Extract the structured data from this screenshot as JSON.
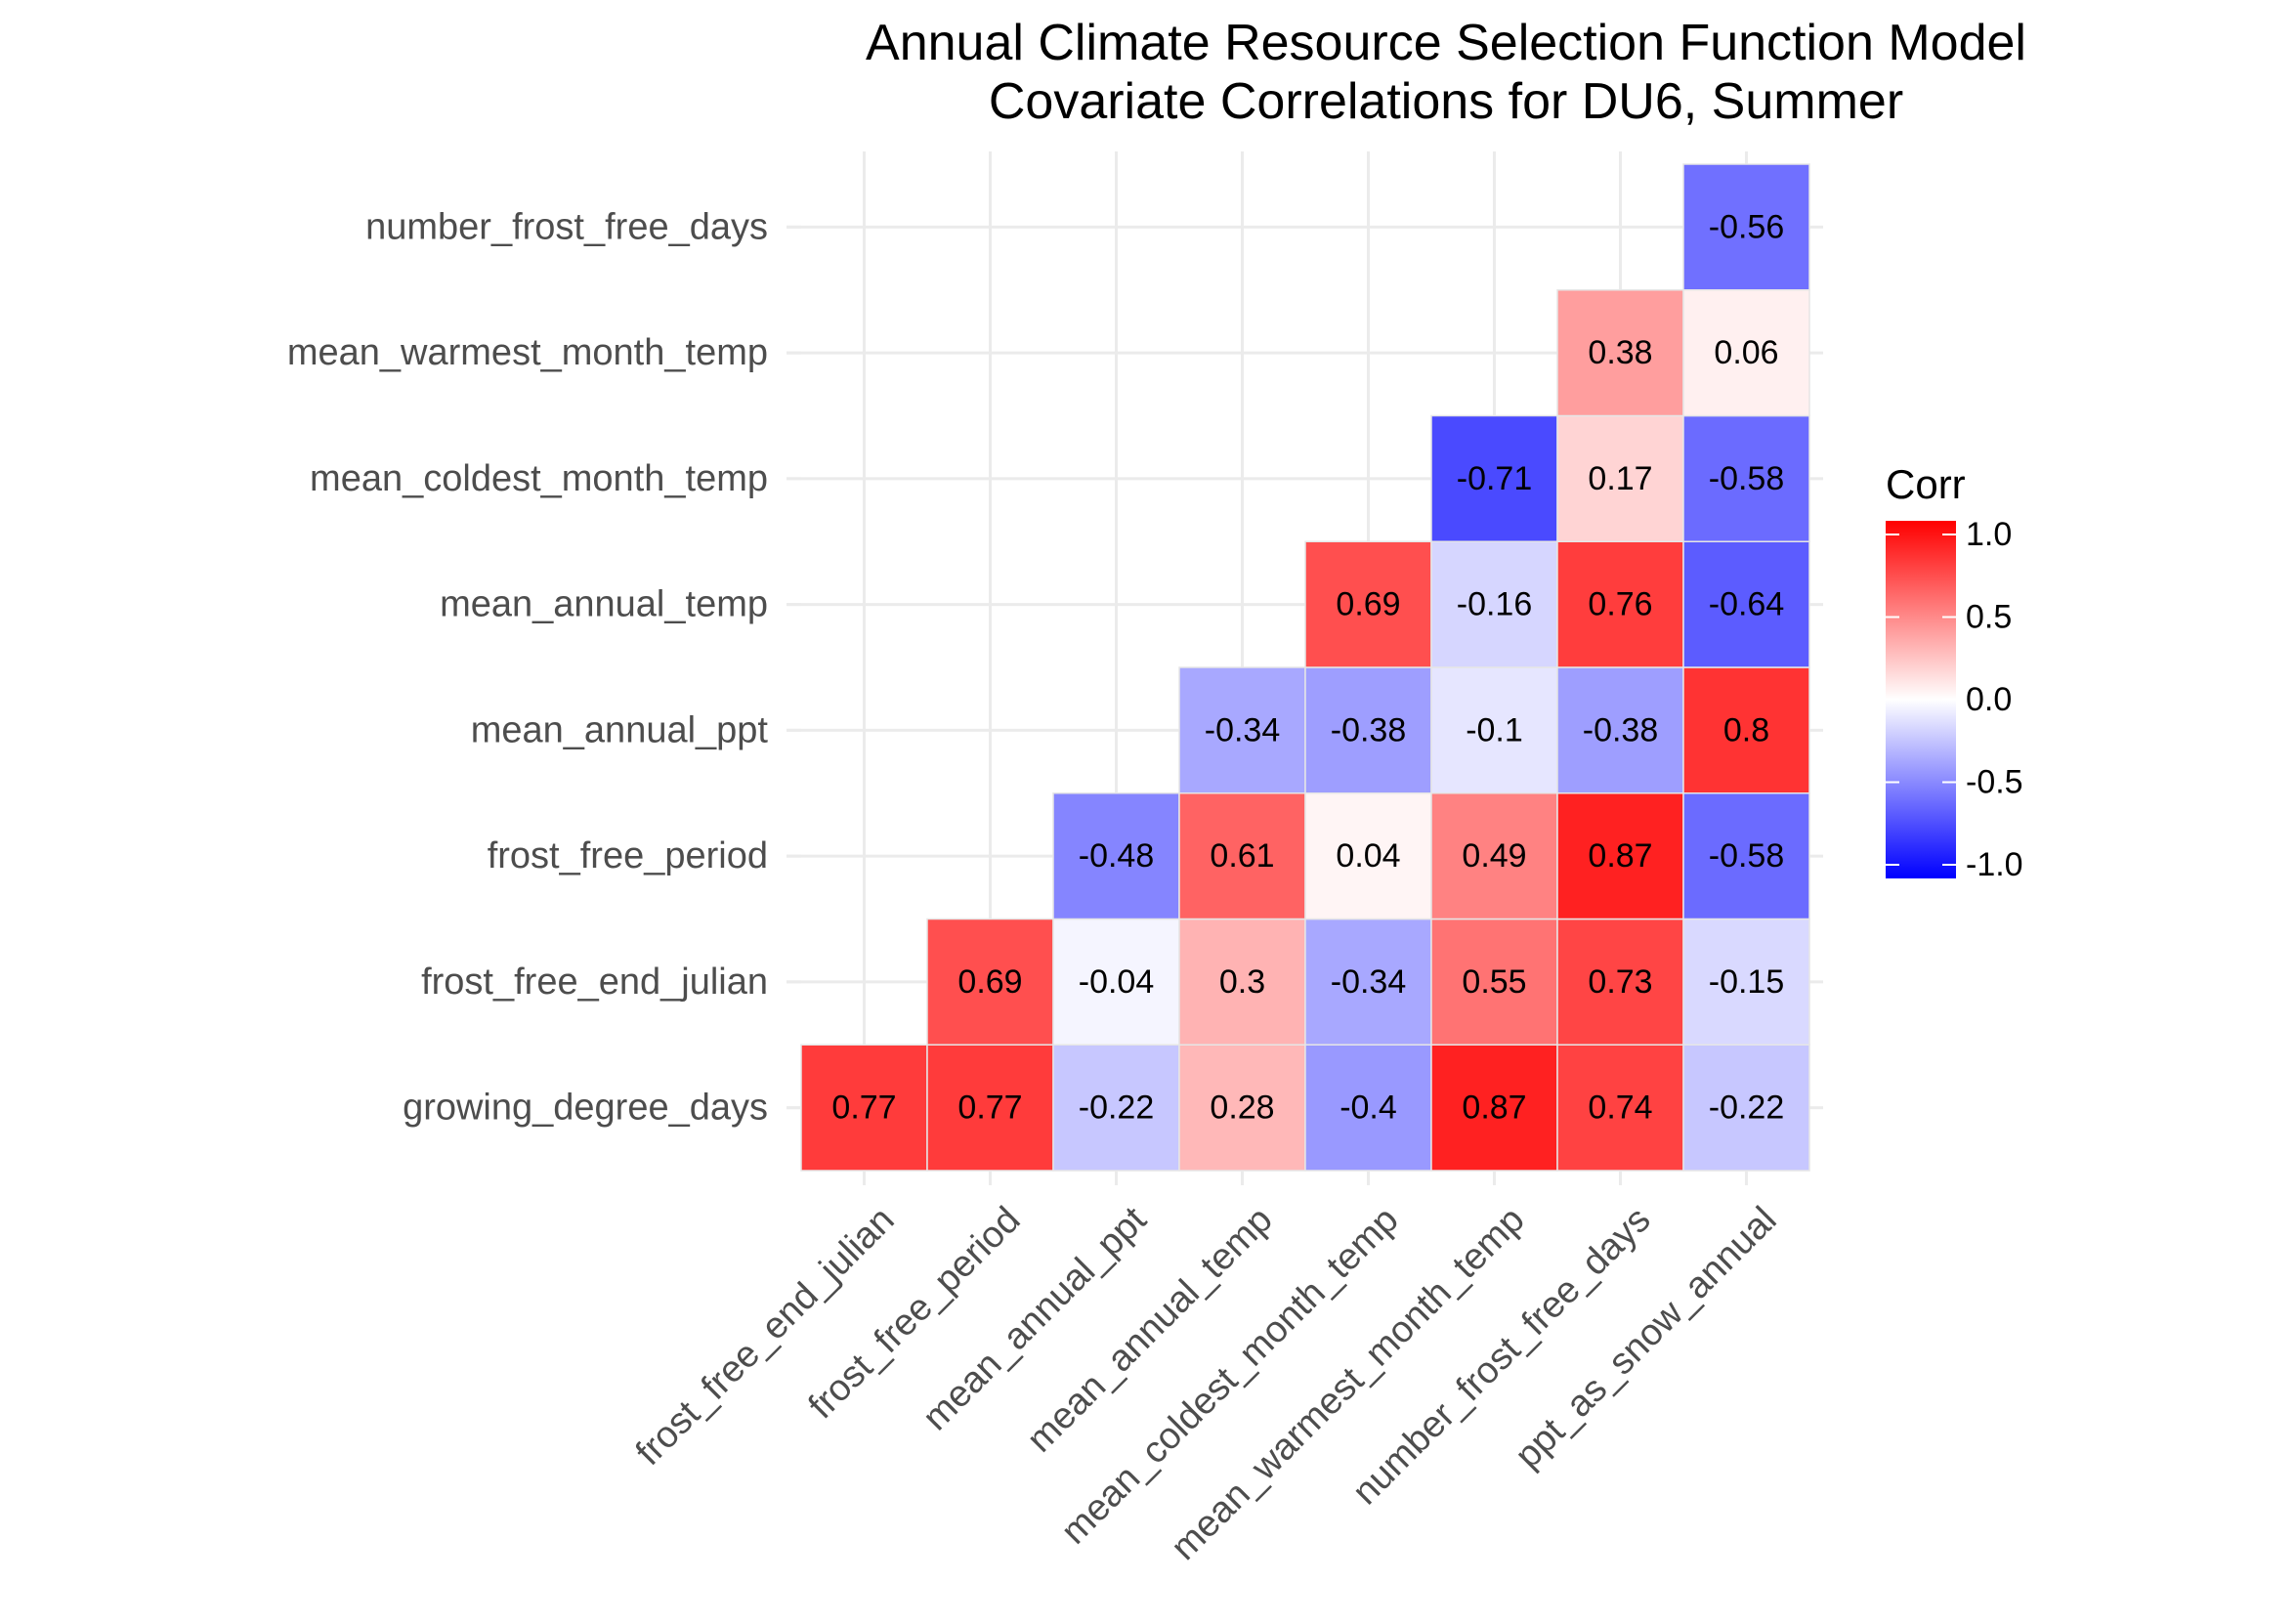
{
  "chart_data": {
    "type": "heatmap",
    "title": [
      "Annual Climate Resource Selection Function Model",
      "Covariate Correlations for DU6, Summer"
    ],
    "xlabel": "",
    "ylabel": "",
    "x_categories": [
      "frost_free_end_julian",
      "frost_free_period",
      "mean_annual_ppt",
      "mean_annual_temp",
      "mean_coldest_month_temp",
      "mean_warmest_month_temp",
      "number_frost_free_days",
      "ppt_as_snow_annual"
    ],
    "y_categories": [
      "growing_degree_days",
      "frost_free_end_julian",
      "frost_free_period",
      "mean_annual_ppt",
      "mean_annual_temp",
      "mean_coldest_month_temp",
      "mean_warmest_month_temp",
      "number_frost_free_days"
    ],
    "cells": [
      {
        "x": "frost_free_end_julian",
        "y": "growing_degree_days",
        "value": 0.77,
        "label": "0.77"
      },
      {
        "x": "frost_free_period",
        "y": "growing_degree_days",
        "value": 0.77,
        "label": "0.77"
      },
      {
        "x": "mean_annual_ppt",
        "y": "growing_degree_days",
        "value": -0.22,
        "label": "-0.22"
      },
      {
        "x": "mean_annual_temp",
        "y": "growing_degree_days",
        "value": 0.28,
        "label": "0.28"
      },
      {
        "x": "mean_coldest_month_temp",
        "y": "growing_degree_days",
        "value": -0.4,
        "label": "-0.4"
      },
      {
        "x": "mean_warmest_month_temp",
        "y": "growing_degree_days",
        "value": 0.87,
        "label": "0.87"
      },
      {
        "x": "number_frost_free_days",
        "y": "growing_degree_days",
        "value": 0.74,
        "label": "0.74"
      },
      {
        "x": "ppt_as_snow_annual",
        "y": "growing_degree_days",
        "value": -0.22,
        "label": "-0.22"
      },
      {
        "x": "frost_free_period",
        "y": "frost_free_end_julian",
        "value": 0.69,
        "label": "0.69"
      },
      {
        "x": "mean_annual_ppt",
        "y": "frost_free_end_julian",
        "value": -0.04,
        "label": "-0.04"
      },
      {
        "x": "mean_annual_temp",
        "y": "frost_free_end_julian",
        "value": 0.3,
        "label": "0.3"
      },
      {
        "x": "mean_coldest_month_temp",
        "y": "frost_free_end_julian",
        "value": -0.34,
        "label": "-0.34"
      },
      {
        "x": "mean_warmest_month_temp",
        "y": "frost_free_end_julian",
        "value": 0.55,
        "label": "0.55"
      },
      {
        "x": "number_frost_free_days",
        "y": "frost_free_end_julian",
        "value": 0.73,
        "label": "0.73"
      },
      {
        "x": "ppt_as_snow_annual",
        "y": "frost_free_end_julian",
        "value": -0.15,
        "label": "-0.15"
      },
      {
        "x": "mean_annual_ppt",
        "y": "frost_free_period",
        "value": -0.48,
        "label": "-0.48"
      },
      {
        "x": "mean_annual_temp",
        "y": "frost_free_period",
        "value": 0.61,
        "label": "0.61"
      },
      {
        "x": "mean_coldest_month_temp",
        "y": "frost_free_period",
        "value": 0.04,
        "label": "0.04"
      },
      {
        "x": "mean_warmest_month_temp",
        "y": "frost_free_period",
        "value": 0.49,
        "label": "0.49"
      },
      {
        "x": "number_frost_free_days",
        "y": "frost_free_period",
        "value": 0.87,
        "label": "0.87"
      },
      {
        "x": "ppt_as_snow_annual",
        "y": "frost_free_period",
        "value": -0.58,
        "label": "-0.58"
      },
      {
        "x": "mean_annual_temp",
        "y": "mean_annual_ppt",
        "value": -0.34,
        "label": "-0.34"
      },
      {
        "x": "mean_coldest_month_temp",
        "y": "mean_annual_ppt",
        "value": -0.38,
        "label": "-0.38"
      },
      {
        "x": "mean_warmest_month_temp",
        "y": "mean_annual_ppt",
        "value": -0.1,
        "label": "-0.1"
      },
      {
        "x": "number_frost_free_days",
        "y": "mean_annual_ppt",
        "value": -0.38,
        "label": "-0.38"
      },
      {
        "x": "ppt_as_snow_annual",
        "y": "mean_annual_ppt",
        "value": 0.8,
        "label": "0.8"
      },
      {
        "x": "mean_coldest_month_temp",
        "y": "mean_annual_temp",
        "value": 0.69,
        "label": "0.69"
      },
      {
        "x": "mean_warmest_month_temp",
        "y": "mean_annual_temp",
        "value": -0.16,
        "label": "-0.16"
      },
      {
        "x": "number_frost_free_days",
        "y": "mean_annual_temp",
        "value": 0.76,
        "label": "0.76"
      },
      {
        "x": "ppt_as_snow_annual",
        "y": "mean_annual_temp",
        "value": -0.64,
        "label": "-0.64"
      },
      {
        "x": "mean_warmest_month_temp",
        "y": "mean_coldest_month_temp",
        "value": -0.71,
        "label": "-0.71"
      },
      {
        "x": "number_frost_free_days",
        "y": "mean_coldest_month_temp",
        "value": 0.17,
        "label": "0.17"
      },
      {
        "x": "ppt_as_snow_annual",
        "y": "mean_coldest_month_temp",
        "value": -0.58,
        "label": "-0.58"
      },
      {
        "x": "number_frost_free_days",
        "y": "mean_warmest_month_temp",
        "value": 0.38,
        "label": "0.38"
      },
      {
        "x": "ppt_as_snow_annual",
        "y": "mean_warmest_month_temp",
        "value": 0.06,
        "label": "0.06"
      },
      {
        "x": "ppt_as_snow_annual",
        "y": "number_frost_free_days",
        "value": -0.56,
        "label": "-0.56"
      }
    ],
    "legend": {
      "title": "Corr",
      "placement": "right",
      "range": [
        -1.0,
        1.0
      ],
      "breaks": [
        1.0,
        0.5,
        0.0,
        -0.5,
        -1.0
      ],
      "break_labels": [
        "1.0",
        "0.5",
        "0.0",
        "-0.5",
        "-1.0"
      ],
      "low_color": "#0000FF",
      "mid_color": "#FFFFFF",
      "high_color": "#FF0000"
    },
    "grid": true
  }
}
